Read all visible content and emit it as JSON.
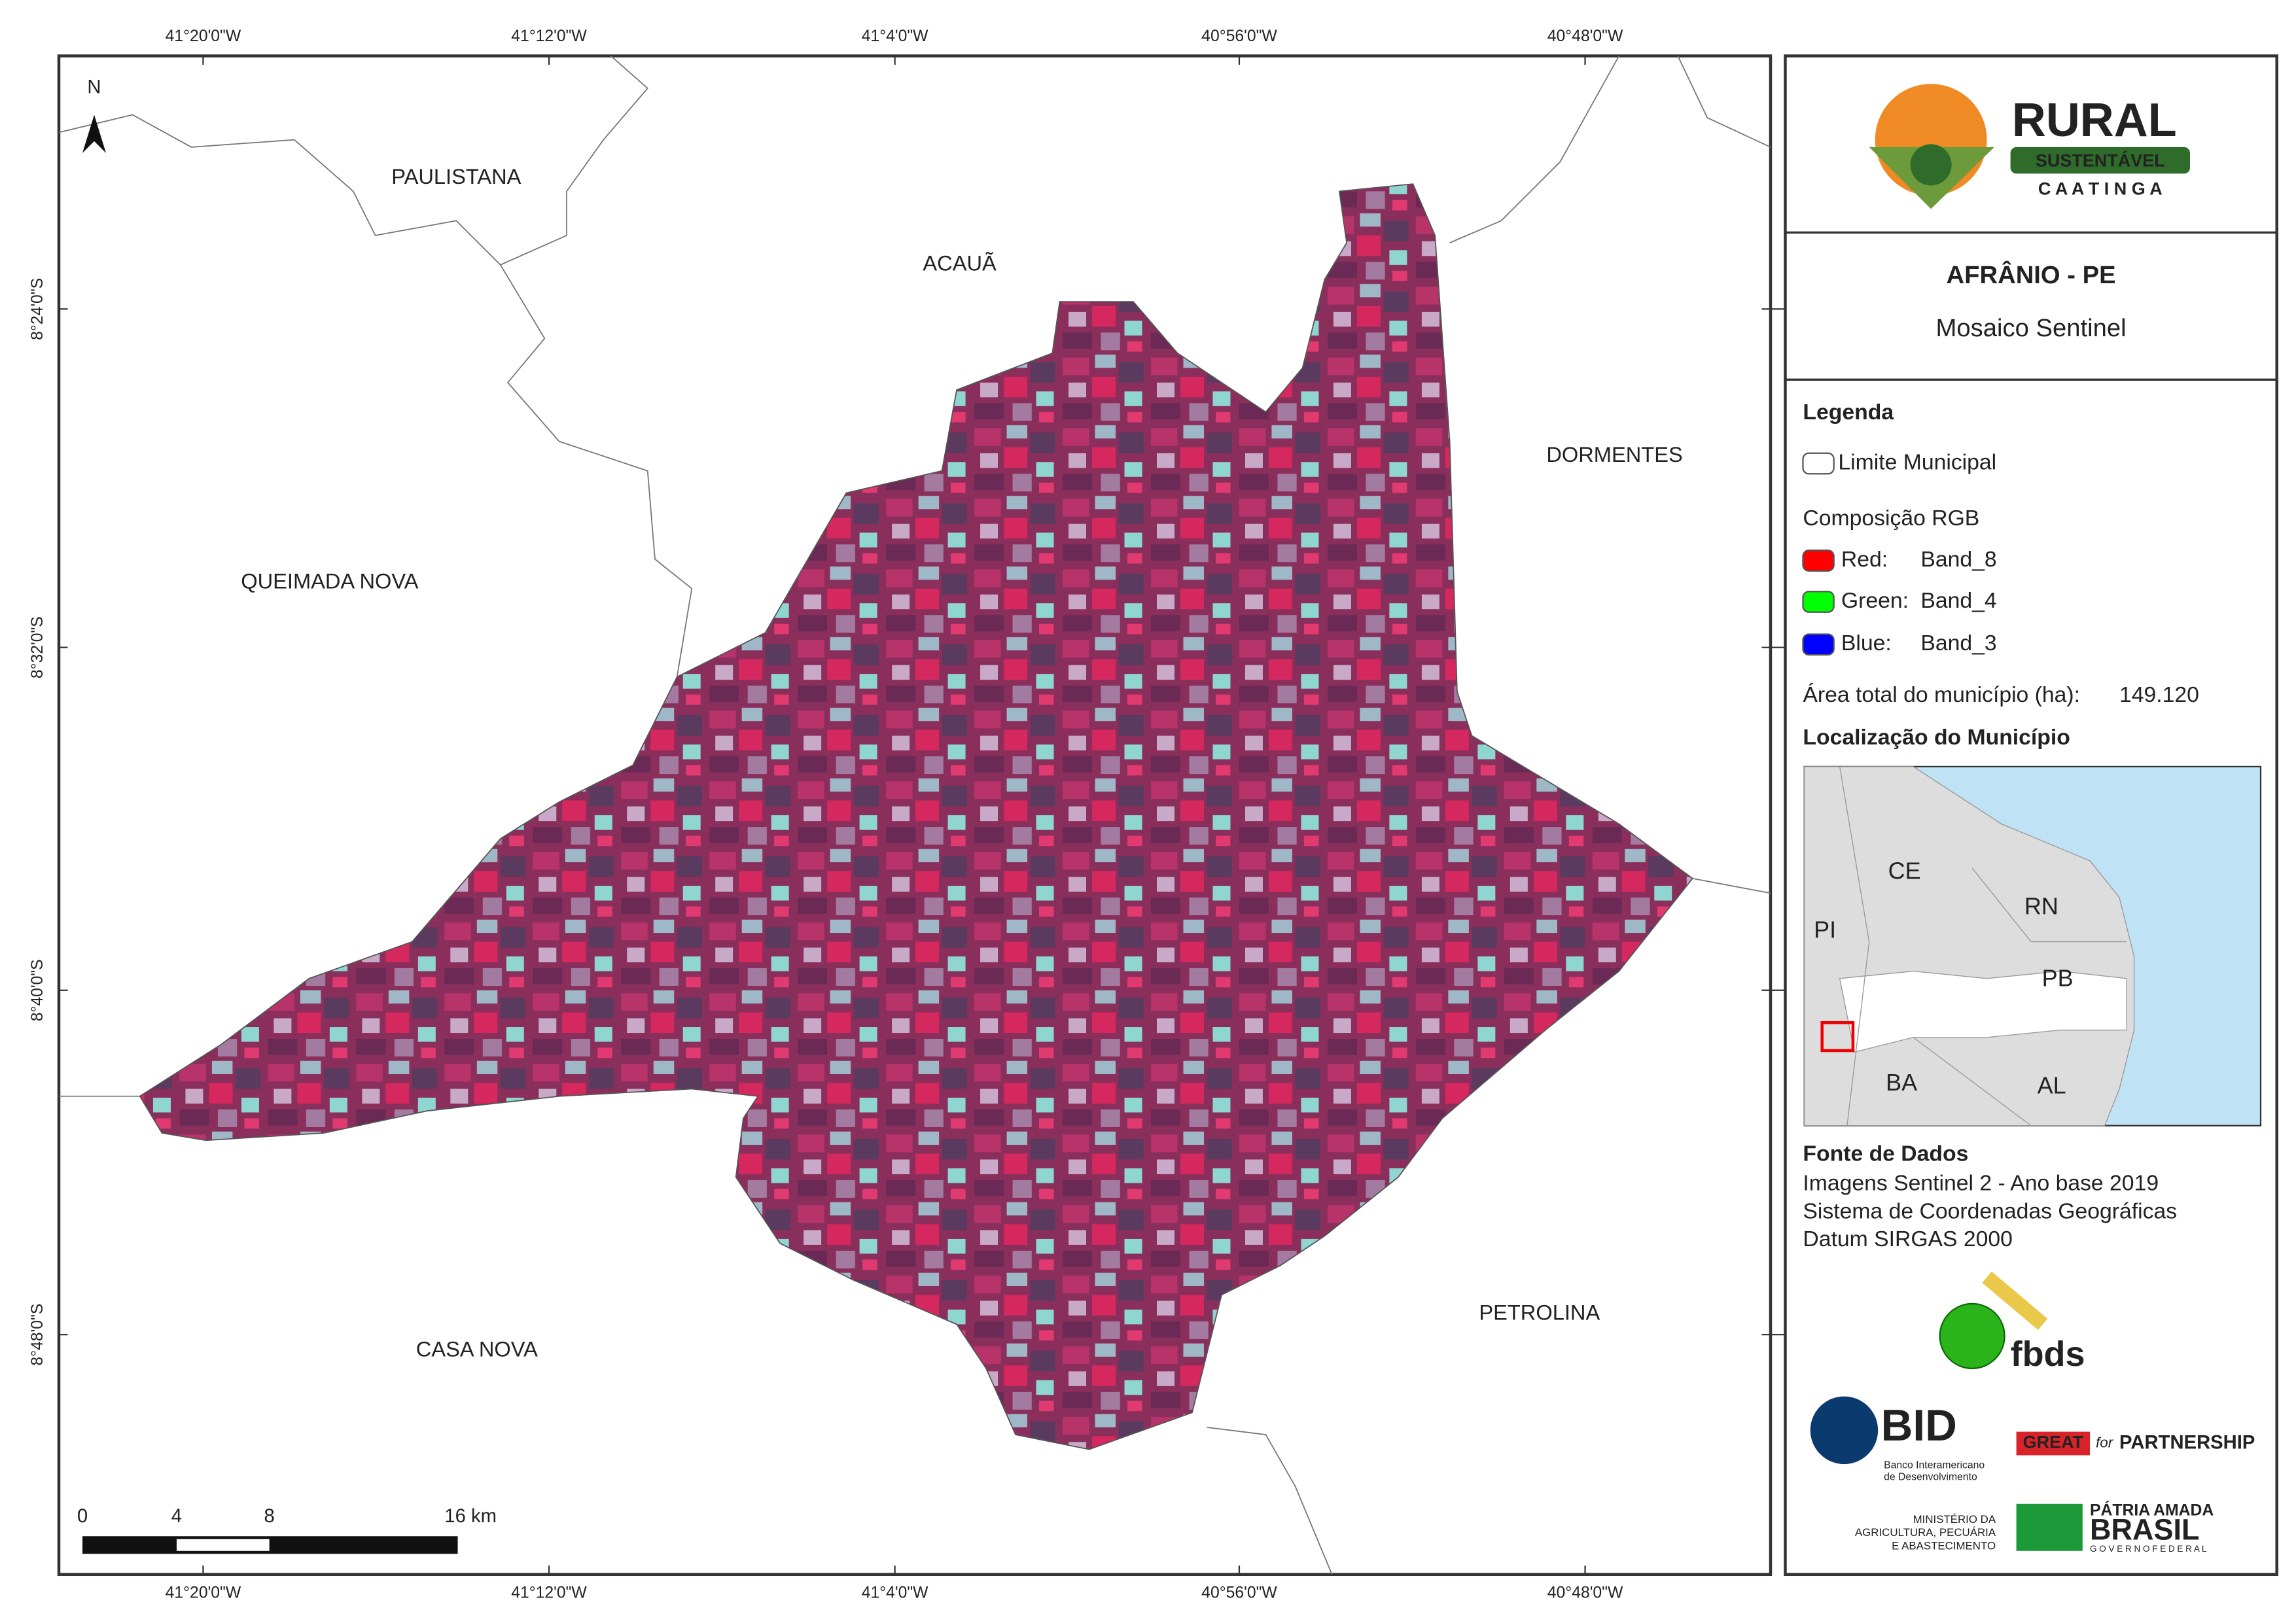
{
  "map": {
    "coords_top": [
      "41°20'0\"W",
      "41°12'0\"W",
      "41°4'0\"W",
      "40°56'0\"W",
      "40°48'0\"W"
    ],
    "coords_bottom": [
      "41°20'0\"W",
      "41°12'0\"W",
      "41°4'0\"W",
      "40°56'0\"W",
      "40°48'0\"W"
    ],
    "coords_left": [
      "8°24'0\"S",
      "8°32'0\"S",
      "8°40'0\"S",
      "8°48'0\"S"
    ],
    "north": "N",
    "places": [
      "PAULISTANA",
      "ACAUÃ",
      "DORMENTES",
      "QUEIMADA NOVA",
      "PETROLINA",
      "CASA NOVA"
    ],
    "scale_bar": [
      "0",
      "4",
      "8",
      "16 km"
    ]
  },
  "panel": {
    "logo": {
      "title": "RURAL",
      "subtitle": "SUSTENTÁVEL",
      "tagline": "C A A T I N G A"
    },
    "title": "AFRÂNIO - PE",
    "subtitle": "Mosaico Sentinel",
    "legend": {
      "heading": "Legenda",
      "boundary": "Limite Municipal",
      "rgb_heading": "Composição RGB",
      "bands": [
        {
          "channel": "Red:",
          "band": "Band_8",
          "color": "#ff0000"
        },
        {
          "channel": "Green:",
          "band": "Band_4",
          "color": "#00ff00"
        },
        {
          "channel": "Blue:",
          "band": "Band_3",
          "color": "#0000ff"
        }
      ],
      "area_label": "Área total do município (ha):",
      "area_value": "149.120"
    },
    "location": {
      "heading": "Localização do Município",
      "states": [
        "CE",
        "RN",
        "PI",
        "PB",
        "BA",
        "AL"
      ]
    },
    "sources": {
      "heading": "Fonte de Dados",
      "lines": [
        "Imagens Sentinel 2 - Ano base 2019",
        "Sistema de Coordenadas Geográficas",
        "Datum SIRGAS 2000"
      ]
    },
    "partners": {
      "fbds": "fbds",
      "bid": "BID",
      "bid_name_1": "Banco Interamericano",
      "bid_name_2": "de Desenvolvimento",
      "great": "GREAT",
      "for": "for",
      "partnership": "PARTNERSHIP",
      "ministry": [
        "MINISTÉRIO DA",
        "AGRICULTURA, PECUÁRIA",
        "E ABASTECIMENTO"
      ],
      "patria": "PÁTRIA AMADA",
      "brasil": "BRASIL",
      "governo": "G O V E R N O   F E D E R A L"
    }
  }
}
